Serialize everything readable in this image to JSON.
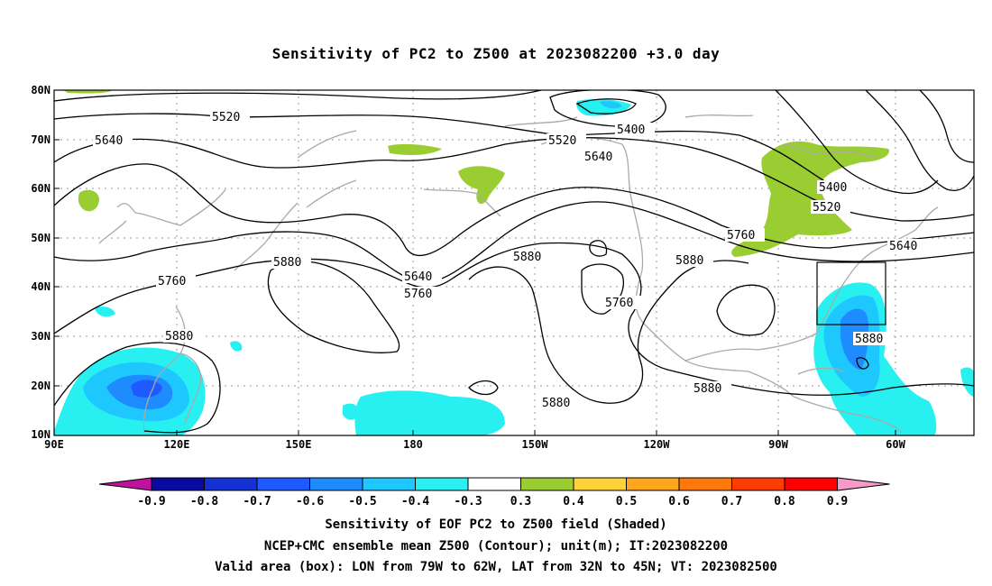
{
  "title": "Sensitivity of PC2 to Z500 at 2023082200 +3.0 day",
  "axes": {
    "lat_labels": [
      "80N",
      "70N",
      "60N",
      "50N",
      "40N",
      "30N",
      "20N",
      "10N"
    ],
    "lon_labels": [
      "90E",
      "120E",
      "150E",
      "180",
      "150W",
      "120W",
      "90W",
      "60W"
    ]
  },
  "contour_labels": [
    "5520",
    "5640",
    "5400",
    "5520",
    "5640",
    "5400",
    "5520",
    "5640",
    "5760",
    "5880",
    "5880",
    "5640",
    "5760",
    "5760",
    "5880",
    "5880",
    "5880",
    "5880",
    "5760",
    "5880"
  ],
  "colorbar": {
    "labels": [
      "-0.9",
      "-0.8",
      "-0.7",
      "-0.6",
      "-0.5",
      "-0.4",
      "-0.3",
      "0.3",
      "0.4",
      "0.5",
      "0.6",
      "0.7",
      "0.8",
      "0.9"
    ],
    "low_triangle_color": "#c0119e",
    "high_triangle_color": "#f59ac9",
    "colors": [
      "#0a0aa0",
      "#1432d2",
      "#1e5aff",
      "#1e8cff",
      "#1ec8ff",
      "#28f0f0",
      "#ffffff",
      "#9acd32",
      "#ffd23c",
      "#ffa51e",
      "#ff780a",
      "#ff3c00",
      "#ff0000"
    ]
  },
  "colors": {
    "negative_shade": "#1ec8ff",
    "negative_light": "#28f0f0",
    "negative_mid": "#1e8cff",
    "positive_shade": "#9acd32",
    "coast": "#a9a9a9",
    "contour": "#000000"
  },
  "caption": {
    "line1": "Sensitivity of EOF PC2 to Z500 field (Shaded)",
    "line2": "NCEP+CMC ensemble mean Z500 (Contour); unit(m); IT:2023082200",
    "line3": "Valid area (box): LON from 79W to 62W, LAT from 32N to 45N; VT: 2023082500"
  }
}
